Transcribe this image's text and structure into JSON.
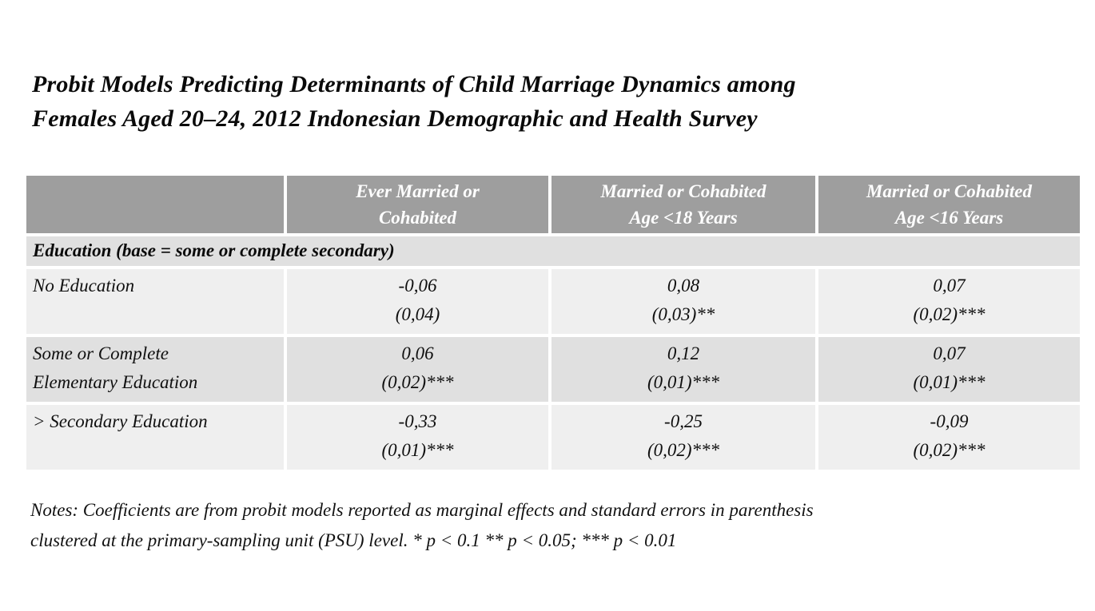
{
  "title": {
    "text": "Probit Models Predicting Determinants of Child Marriage Dynamics among\nFemales Aged 20–24, 2012 Indonesian Demographic and Health Survey"
  },
  "table": {
    "headers": {
      "col1": "",
      "col2": "Ever Married or\nCohabited",
      "col3": "Married or Cohabited\nAge <18 Years",
      "col4": "Married or Cohabited\nAge <16 Years"
    },
    "section_header": "Education (base = some or complete secondary)",
    "rows": [
      {
        "label": "No Education",
        "cells": [
          {
            "coef": "-0,06",
            "se": "(0,04)"
          },
          {
            "coef": "0,08",
            "se": "(0,03)**"
          },
          {
            "coef": "0,07",
            "se": "(0,02)***"
          }
        ]
      },
      {
        "label": "Some or Complete\nElementary Education",
        "cells": [
          {
            "coef": "0,06",
            "se": "(0,02)***"
          },
          {
            "coef": "0,12",
            "se": "(0,01)***"
          },
          {
            "coef": "0,07",
            "se": "(0,01)***"
          }
        ]
      },
      {
        "label": "> Secondary Education",
        "cells": [
          {
            "coef": "-0,33",
            "se": "(0,01)***"
          },
          {
            "coef": "-0,25",
            "se": "(0,02)***"
          },
          {
            "coef": "-0,09",
            "se": "(0,02)***"
          }
        ]
      }
    ]
  },
  "notes": {
    "text": "Notes: Coefficients are from probit models reported as marginal effects and standard errors in parenthesis\nclustered at the primary-sampling unit (PSU) level. * p < 0.1 ** p < 0.05; *** p < 0.01"
  },
  "colors": {
    "header_bg": "#9e9e9e",
    "header_text": "#ffffff",
    "row_band_dark": "#e0e0e0",
    "row_band_light": "#efefef",
    "page_bg": "#ffffff",
    "text": "#0d0d0d"
  }
}
